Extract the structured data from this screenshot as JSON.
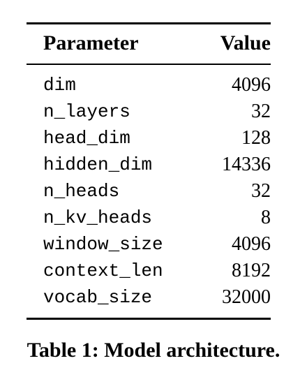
{
  "table": {
    "headers": {
      "parameter": "Parameter",
      "value": "Value"
    },
    "rows": [
      {
        "parameter": "dim",
        "value": "4096"
      },
      {
        "parameter": "n_layers",
        "value": "32"
      },
      {
        "parameter": "head_dim",
        "value": "128"
      },
      {
        "parameter": "hidden_dim",
        "value": "14336"
      },
      {
        "parameter": "n_heads",
        "value": "32"
      },
      {
        "parameter": "n_kv_heads",
        "value": "8"
      },
      {
        "parameter": "window_size",
        "value": "4096"
      },
      {
        "parameter": "context_len",
        "value": "8192"
      },
      {
        "parameter": "vocab_size",
        "value": "32000"
      }
    ]
  },
  "caption": "Table 1: Model architecture."
}
